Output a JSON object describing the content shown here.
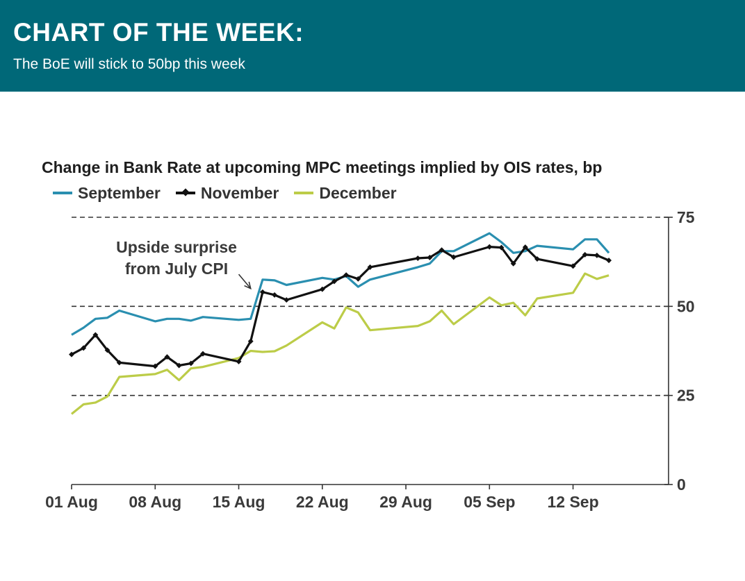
{
  "banner": {
    "title": "CHART OF THE WEEK:",
    "subtitle": "The BoE will stick to 50bp this week",
    "background": "#006878"
  },
  "chart_data": {
    "type": "line",
    "title": "Change in Bank Rate at upcoming MPC meetings implied by OIS rates, bp",
    "xlabel": "",
    "ylabel": "",
    "ylim": [
      0,
      75
    ],
    "y_ticks": [
      0,
      25,
      50,
      75
    ],
    "y_gridlines": [
      25,
      50,
      75
    ],
    "grid_style": "dashed",
    "y_axis_side": "right",
    "legend_position": "top-left",
    "x_domain": [
      "2022-08-01",
      "2022-09-20"
    ],
    "x_ticks": [
      {
        "date": "2022-08-01",
        "label": "01 Aug"
      },
      {
        "date": "2022-08-08",
        "label": "08 Aug"
      },
      {
        "date": "2022-08-15",
        "label": "15 Aug"
      },
      {
        "date": "2022-08-22",
        "label": "22 Aug"
      },
      {
        "date": "2022-08-29",
        "label": "29 Aug"
      },
      {
        "date": "2022-09-05",
        "label": "05 Sep"
      },
      {
        "date": "2022-09-12",
        "label": "12 Sep"
      }
    ],
    "annotations": [
      {
        "lines": [
          "Upside surprise",
          "from July CPI"
        ],
        "arrow_from": {
          "date": "2022-08-15",
          "value": 59
        },
        "arrow_to": {
          "date": "2022-08-16",
          "value": 55
        }
      }
    ],
    "series": [
      {
        "name": "September",
        "color": "#2a8fb0",
        "marker": "none",
        "points": [
          [
            "2022-08-01",
            42
          ],
          [
            "2022-08-02",
            44
          ],
          [
            "2022-08-03",
            46.5
          ],
          [
            "2022-08-04",
            46.8
          ],
          [
            "2022-08-05",
            48.8
          ],
          [
            "2022-08-08",
            45.8
          ],
          [
            "2022-08-09",
            46.5
          ],
          [
            "2022-08-10",
            46.5
          ],
          [
            "2022-08-11",
            46
          ],
          [
            "2022-08-12",
            47
          ],
          [
            "2022-08-15",
            46.2
          ],
          [
            "2022-08-16",
            46.5
          ],
          [
            "2022-08-17",
            57.5
          ],
          [
            "2022-08-18",
            57.3
          ],
          [
            "2022-08-19",
            56
          ],
          [
            "2022-08-22",
            58
          ],
          [
            "2022-08-23",
            57.5
          ],
          [
            "2022-08-24",
            58.5
          ],
          [
            "2022-08-25",
            55.5
          ],
          [
            "2022-08-26",
            57.5
          ],
          [
            "2022-08-30",
            61
          ],
          [
            "2022-08-31",
            62
          ],
          [
            "2022-09-01",
            65.5
          ],
          [
            "2022-09-02",
            65.5
          ],
          [
            "2022-09-05",
            70.5
          ],
          [
            "2022-09-06",
            68
          ],
          [
            "2022-09-07",
            65
          ],
          [
            "2022-09-08",
            65.5
          ],
          [
            "2022-09-09",
            67
          ],
          [
            "2022-09-12",
            66
          ],
          [
            "2022-09-13",
            68.8
          ],
          [
            "2022-09-14",
            68.8
          ],
          [
            "2022-09-15",
            65
          ]
        ]
      },
      {
        "name": "November",
        "color": "#111111",
        "marker": "diamond",
        "points": [
          [
            "2022-08-01",
            36.5
          ],
          [
            "2022-08-02",
            38.3
          ],
          [
            "2022-08-03",
            42
          ],
          [
            "2022-08-04",
            37.7
          ],
          [
            "2022-08-05",
            34.2
          ],
          [
            "2022-08-08",
            33.2
          ],
          [
            "2022-08-09",
            35.8
          ],
          [
            "2022-08-10",
            33.4
          ],
          [
            "2022-08-11",
            34
          ],
          [
            "2022-08-12",
            36.7
          ],
          [
            "2022-08-15",
            34.5
          ],
          [
            "2022-08-16",
            40.2
          ],
          [
            "2022-08-17",
            54
          ],
          [
            "2022-08-18",
            53.2
          ],
          [
            "2022-08-19",
            51.8
          ],
          [
            "2022-08-22",
            54.8
          ],
          [
            "2022-08-23",
            57
          ],
          [
            "2022-08-24",
            58.8
          ],
          [
            "2022-08-25",
            57.7
          ],
          [
            "2022-08-26",
            61
          ],
          [
            "2022-08-30",
            63.5
          ],
          [
            "2022-08-31",
            63.7
          ],
          [
            "2022-09-01",
            65.8
          ],
          [
            "2022-09-02",
            63.8
          ],
          [
            "2022-09-05",
            66.7
          ],
          [
            "2022-09-06",
            66.5
          ],
          [
            "2022-09-07",
            62
          ],
          [
            "2022-09-08",
            66.6
          ],
          [
            "2022-09-09",
            63.3
          ],
          [
            "2022-09-12",
            61.3
          ],
          [
            "2022-09-13",
            64.5
          ],
          [
            "2022-09-14",
            64.3
          ],
          [
            "2022-09-15",
            62.9
          ]
        ]
      },
      {
        "name": "December",
        "color": "#bccc48",
        "marker": "none",
        "points": [
          [
            "2022-08-01",
            19.8
          ],
          [
            "2022-08-02",
            22.5
          ],
          [
            "2022-08-03",
            23
          ],
          [
            "2022-08-04",
            24.7
          ],
          [
            "2022-08-05",
            30.2
          ],
          [
            "2022-08-08",
            31
          ],
          [
            "2022-08-09",
            32.2
          ],
          [
            "2022-08-10",
            29.3
          ],
          [
            "2022-08-11",
            32.6
          ],
          [
            "2022-08-12",
            33
          ],
          [
            "2022-08-15",
            35.5
          ],
          [
            "2022-08-16",
            37.5
          ],
          [
            "2022-08-17",
            37.2
          ],
          [
            "2022-08-18",
            37.4
          ],
          [
            "2022-08-19",
            39
          ],
          [
            "2022-08-22",
            45.5
          ],
          [
            "2022-08-23",
            43.8
          ],
          [
            "2022-08-24",
            49.7
          ],
          [
            "2022-08-25",
            48.3
          ],
          [
            "2022-08-26",
            43.3
          ],
          [
            "2022-08-30",
            44.5
          ],
          [
            "2022-08-31",
            45.8
          ],
          [
            "2022-09-01",
            48.8
          ],
          [
            "2022-09-02",
            45
          ],
          [
            "2022-09-05",
            52.5
          ],
          [
            "2022-09-06",
            50.3
          ],
          [
            "2022-09-07",
            51
          ],
          [
            "2022-09-08",
            47.5
          ],
          [
            "2022-09-09",
            52.2
          ],
          [
            "2022-09-12",
            53.8
          ],
          [
            "2022-09-13",
            59.2
          ],
          [
            "2022-09-14",
            57.7
          ],
          [
            "2022-09-15",
            58.7
          ]
        ]
      }
    ]
  }
}
